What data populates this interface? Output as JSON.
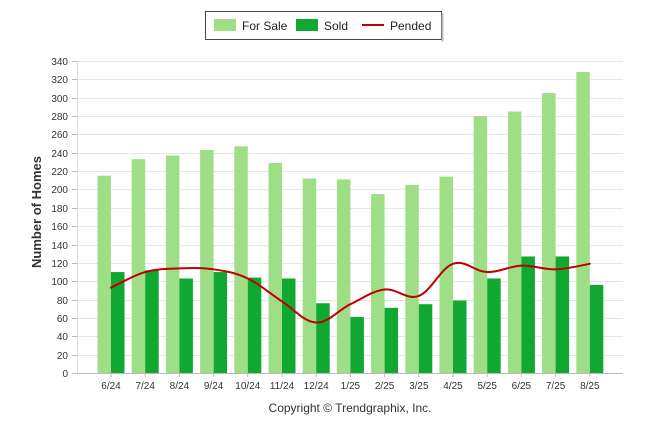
{
  "chart_data": {
    "type": "bar",
    "categories": [
      "6/24",
      "7/24",
      "8/24",
      "9/24",
      "10/24",
      "11/24",
      "12/24",
      "1/25",
      "2/25",
      "3/25",
      "4/25",
      "5/25",
      "6/25",
      "7/25",
      "8/25"
    ],
    "series": [
      {
        "name": "For Sale",
        "type": "bar",
        "color": "#9ede87",
        "values": [
          215,
          233,
          237,
          243,
          247,
          229,
          212,
          211,
          195,
          205,
          214,
          280,
          285,
          305,
          328
        ]
      },
      {
        "name": "Sold",
        "type": "bar",
        "color": "#11a831",
        "values": [
          110,
          112,
          103,
          110,
          104,
          103,
          76,
          61,
          71,
          75,
          79,
          103,
          127,
          127,
          96
        ]
      },
      {
        "name": "Pended",
        "type": "line",
        "color": "#c00000",
        "values": [
          93,
          110,
          114,
          113,
          103,
          78,
          55,
          75,
          91,
          84,
          119,
          110,
          117,
          113,
          119
        ]
      }
    ],
    "ylabel": "Number of Homes",
    "xlabel": "",
    "ylim": [
      0,
      340
    ],
    "yticks": [
      0,
      20,
      40,
      60,
      80,
      100,
      120,
      140,
      160,
      180,
      200,
      220,
      240,
      260,
      280,
      300,
      320,
      340
    ],
    "grid": true,
    "legend_position": "top-center"
  },
  "footer": {
    "copyright": "Copyright © Trendgraphix, Inc."
  }
}
